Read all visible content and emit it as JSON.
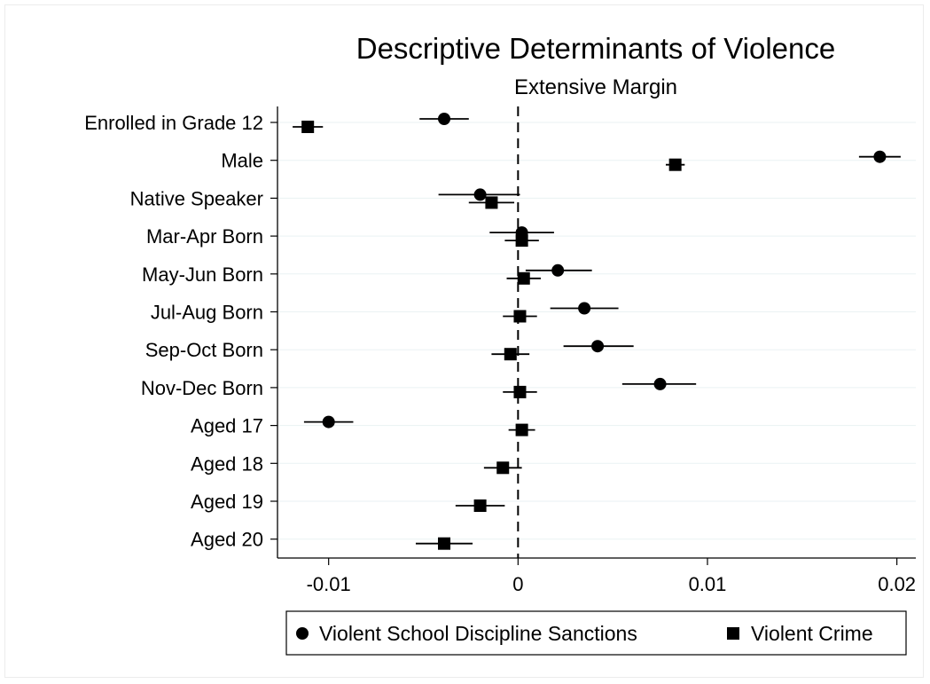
{
  "chart_data": {
    "type": "scatter",
    "title": "Descriptive Determinants of Violence",
    "subtitle": "Extensive Margin",
    "xlabel": "",
    "ylabel": "",
    "xlim": [
      -0.0127,
      0.021
    ],
    "x_ticks": [
      {
        "value": -0.01,
        "label": "-0.01"
      },
      {
        "value": 0,
        "label": "0"
      },
      {
        "value": 0.01,
        "label": "0.01"
      },
      {
        "value": 0.02,
        "label": "0.02"
      }
    ],
    "categories": [
      "Enrolled in Grade 12",
      "Male",
      "Native Speaker",
      "Mar-Apr Born",
      "May-Jun Born",
      "Jul-Aug Born",
      "Sep-Oct Born",
      "Nov-Dec Born",
      "Aged 17",
      "Aged 18",
      "Aged 19",
      "Aged 20"
    ],
    "reference_line": {
      "x": 0,
      "style": "dashed"
    },
    "grid": "horizontal",
    "legend_position": "bottom",
    "series": [
      {
        "name": "Violent School Discipline Sanctions",
        "marker": "circle",
        "color": "#000000",
        "values": [
          -0.0039,
          0.0191,
          -0.002,
          0.0002,
          0.0021,
          0.0035,
          0.0042,
          0.0075,
          -0.01,
          null,
          null,
          null
        ],
        "ci_low": [
          -0.0052,
          0.018,
          -0.0042,
          -0.0015,
          0.0004,
          0.0017,
          0.0024,
          0.0055,
          -0.0113,
          null,
          null,
          null
        ],
        "ci_high": [
          -0.0026,
          0.0202,
          0.0001,
          0.0019,
          0.0039,
          0.0053,
          0.0061,
          0.0094,
          -0.0087,
          null,
          null,
          null
        ]
      },
      {
        "name": "Violent Crime",
        "marker": "square",
        "color": "#000000",
        "values": [
          -0.0111,
          0.0083,
          -0.0014,
          0.0002,
          0.0003,
          0.0001,
          -0.0004,
          0.0001,
          0.0002,
          -0.0008,
          -0.002,
          -0.0039
        ],
        "ci_low": [
          -0.0119,
          0.0078,
          -0.0026,
          -0.0007,
          -0.0006,
          -0.0008,
          -0.0014,
          -0.0008,
          -0.0005,
          -0.0018,
          -0.0033,
          -0.0054
        ],
        "ci_high": [
          -0.0103,
          0.0088,
          -0.0002,
          0.0011,
          0.0012,
          0.001,
          0.0006,
          0.001,
          0.0009,
          0.0002,
          -0.0007,
          -0.0024
        ]
      }
    ]
  }
}
